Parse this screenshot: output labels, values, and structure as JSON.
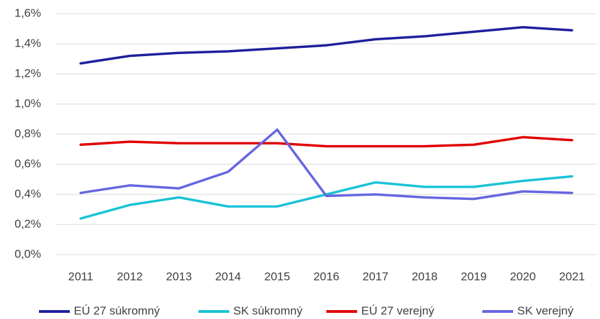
{
  "chart_data": {
    "type": "line",
    "categories": [
      "2011",
      "2012",
      "2013",
      "2014",
      "2015",
      "2016",
      "2017",
      "2018",
      "2019",
      "2020",
      "2021"
    ],
    "series": [
      {
        "name": "EÚ 27 súkromný",
        "color": "#1f1f9c",
        "values": [
          1.27,
          1.32,
          1.34,
          1.35,
          1.37,
          1.39,
          1.43,
          1.45,
          1.48,
          1.51,
          1.49
        ]
      },
      {
        "name": "SK súkromný",
        "color": "#19c3d6",
        "values": [
          0.24,
          0.33,
          0.38,
          0.32,
          0.32,
          0.4,
          0.48,
          0.45,
          0.45,
          0.49,
          0.52
        ]
      },
      {
        "name": "EÚ 27 verejný",
        "color": "#e00000",
        "values": [
          0.73,
          0.75,
          0.74,
          0.74,
          0.74,
          0.72,
          0.72,
          0.72,
          0.73,
          0.78,
          0.76
        ]
      },
      {
        "name": "SK verejný",
        "color": "#6666e0",
        "values": [
          0.41,
          0.46,
          0.44,
          0.55,
          0.83,
          0.39,
          0.4,
          0.38,
          0.37,
          0.42,
          0.41
        ]
      }
    ],
    "ylim": [
      0,
      1.6
    ],
    "yticks": [
      {
        "value": 0,
        "label": "0,0%"
      },
      {
        "value": 0.2,
        "label": "0,2%"
      },
      {
        "value": 0.4,
        "label": "0,4%"
      },
      {
        "value": 0.6,
        "label": "0,6%"
      },
      {
        "value": 0.8,
        "label": "0,8%"
      },
      {
        "value": 1.0,
        "label": "1,0%"
      },
      {
        "value": 1.2,
        "label": "1,2%"
      },
      {
        "value": 1.4,
        "label": "1,4%"
      },
      {
        "value": 1.6,
        "label": "1,6%"
      }
    ],
    "grid": true,
    "legend": "bottom"
  }
}
